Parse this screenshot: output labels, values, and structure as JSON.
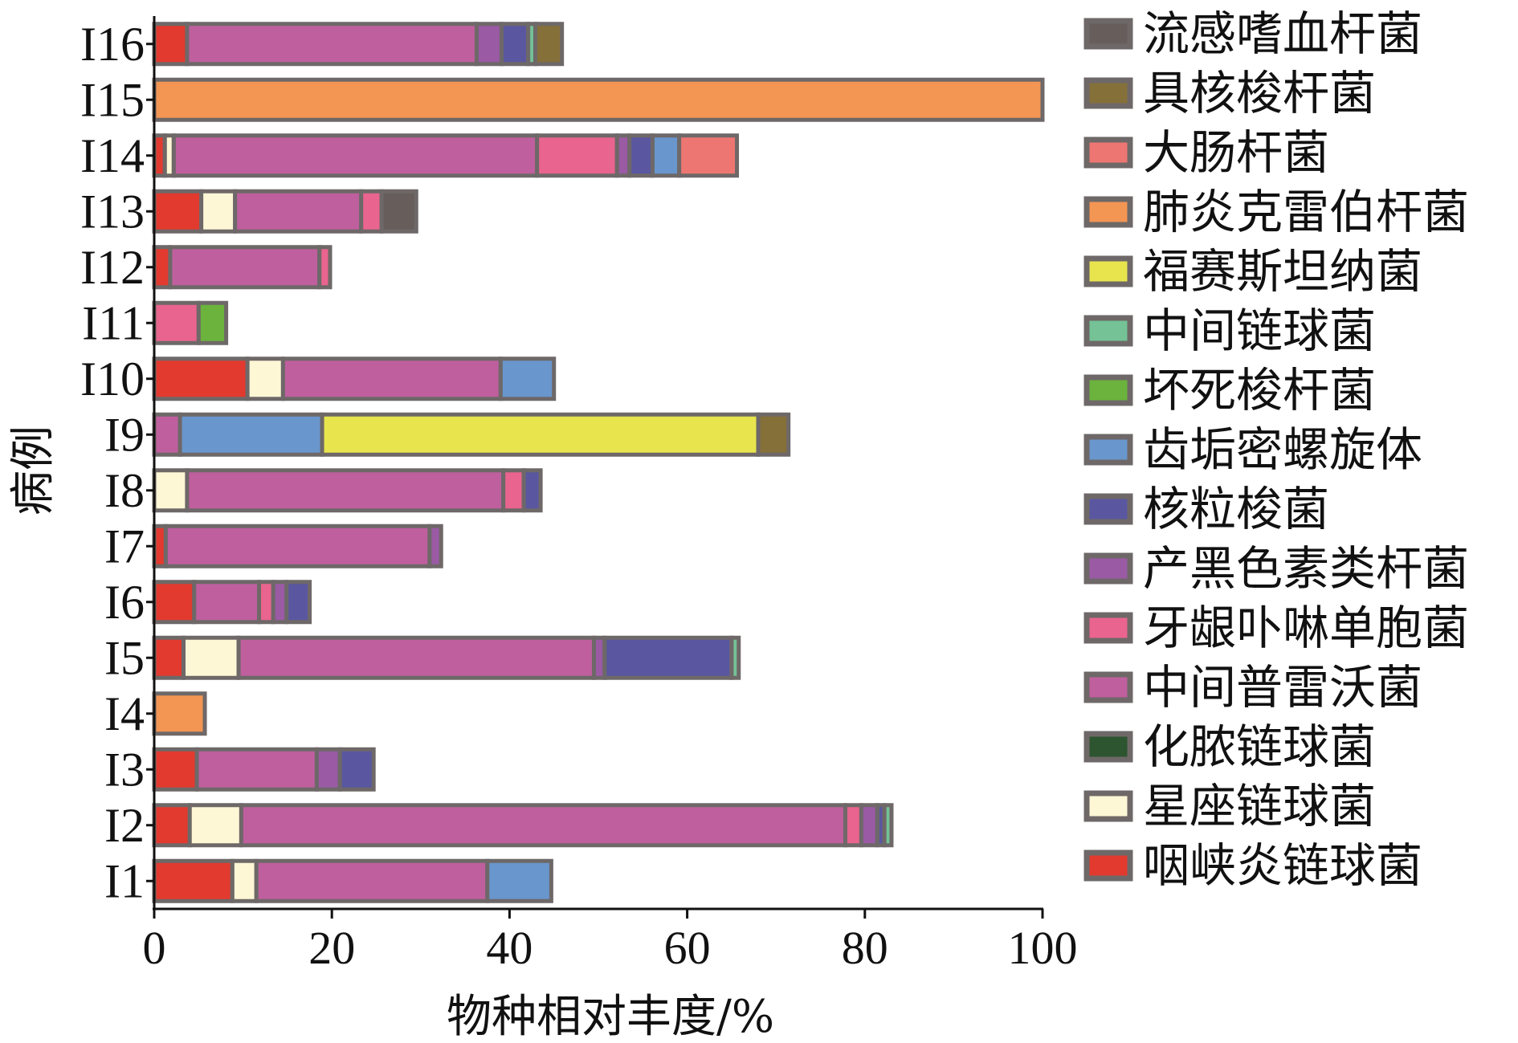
{
  "chart_data": {
    "type": "bar",
    "orientation": "horizontal",
    "stacked": true,
    "xlabel": "物种相对丰度/%",
    "ylabel": "病例",
    "xlim": [
      0,
      100
    ],
    "xticks": [
      0,
      20,
      40,
      60,
      80,
      100
    ],
    "grid": false,
    "legend_position": "right",
    "categories": [
      "I1",
      "I2",
      "I3",
      "I4",
      "I5",
      "I6",
      "I7",
      "I8",
      "I9",
      "I10",
      "I11",
      "I12",
      "I13",
      "I14",
      "I15",
      "I16"
    ],
    "series": [
      {
        "name": "咽峡炎链球菌",
        "color": "#e23a2f",
        "values": [
          8.8,
          4.0,
          4.8,
          0,
          3.3,
          4.5,
          1.3,
          0,
          0,
          10.5,
          0,
          1.8,
          5.3,
          1.2,
          0,
          3.7
        ]
      },
      {
        "name": "星座链球菌",
        "color": "#fdf7d6",
        "values": [
          2.7,
          5.8,
          0,
          0,
          6.2,
          0,
          0,
          3.7,
          0,
          4.0,
          0,
          0,
          3.8,
          1.0,
          0,
          0
        ]
      },
      {
        "name": "化脓链球菌",
        "color": "#2c5530",
        "values": [
          0,
          0,
          0,
          0,
          0,
          0,
          0,
          0,
          0,
          0,
          0,
          0,
          0,
          0,
          0,
          0
        ]
      },
      {
        "name": "中间普雷沃菌",
        "color": "#bf5f9e",
        "values": [
          26.0,
          68.0,
          13.5,
          0,
          40.0,
          7.3,
          29.7,
          35.6,
          2.9,
          24.5,
          0,
          16.8,
          14.2,
          40.9,
          0,
          32.6
        ]
      },
      {
        "name": "牙龈卟啉单胞菌",
        "color": "#e9648e",
        "values": [
          0,
          1.8,
          0,
          0,
          0,
          1.6,
          0,
          2.3,
          0,
          0,
          5.0,
          1.2,
          2.3,
          9.0,
          0,
          0
        ]
      },
      {
        "name": "产黑色素类杆菌",
        "color": "#9a5aa4",
        "values": [
          0,
          1.8,
          2.6,
          0,
          1.2,
          1.5,
          1.3,
          0,
          0,
          0,
          0,
          0,
          0,
          1.4,
          0,
          2.8
        ]
      },
      {
        "name": "核粒梭菌",
        "color": "#5a57a0",
        "values": [
          0,
          0.8,
          3.8,
          0,
          14.3,
          2.6,
          0,
          1.9,
          0,
          0,
          0,
          0,
          0,
          2.6,
          0,
          3.0
        ]
      },
      {
        "name": "齿垢密螺旋体",
        "color": "#6996cc",
        "values": [
          7.2,
          0,
          0,
          0,
          0,
          0,
          0,
          0,
          16.0,
          6.0,
          0,
          0,
          0,
          3.0,
          0,
          0
        ]
      },
      {
        "name": "坏死梭杆菌",
        "color": "#6bb33c",
        "values": [
          0,
          0,
          0,
          0,
          0,
          0,
          0,
          0,
          0,
          0,
          3.1,
          0,
          0,
          0,
          0,
          0
        ]
      },
      {
        "name": "中间链球菌",
        "color": "#74c296",
        "values": [
          0,
          0.8,
          0,
          0,
          0.8,
          0,
          0,
          0,
          0,
          0,
          0,
          0,
          0,
          0,
          0,
          0.8
        ]
      },
      {
        "name": "福赛斯坦纳菌",
        "color": "#e8e44e",
        "values": [
          0,
          0,
          0,
          0,
          0,
          0,
          0,
          0,
          49.1,
          0,
          0,
          0,
          0,
          0,
          0,
          0
        ]
      },
      {
        "name": "肺炎克雷伯杆菌",
        "color": "#f39553",
        "values": [
          0,
          0,
          0,
          5.7,
          0,
          0,
          0,
          0,
          0,
          0,
          0,
          0,
          0,
          0,
          100,
          0
        ]
      },
      {
        "name": "大肠杆菌",
        "color": "#ee7672",
        "values": [
          0,
          0,
          0,
          0,
          0,
          0,
          0,
          0,
          0,
          0,
          0,
          0,
          0,
          6.5,
          0,
          0
        ]
      },
      {
        "name": "具核梭杆菌",
        "color": "#85703a",
        "values": [
          0,
          0,
          0,
          0,
          0,
          0,
          0,
          0,
          3.4,
          0,
          0,
          0,
          0,
          0,
          0,
          3.0
        ]
      },
      {
        "name": "流感嗜血杆菌",
        "color": "#675d5b",
        "values": [
          0,
          0,
          0,
          0,
          0,
          0,
          0,
          0,
          0,
          0,
          0,
          0,
          3.9,
          0,
          0,
          0
        ]
      }
    ]
  }
}
